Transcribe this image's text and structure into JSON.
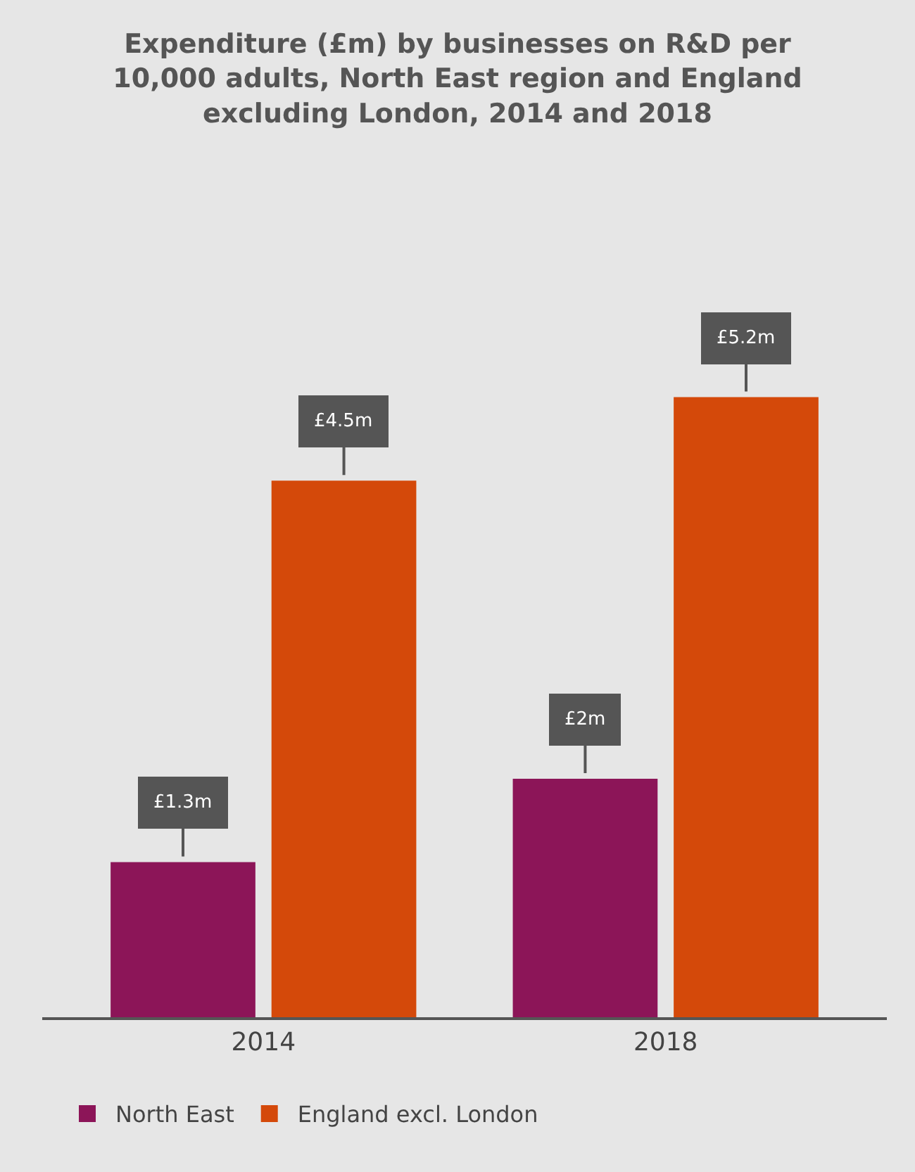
{
  "chart_data": {
    "type": "bar",
    "title": "Expenditure (£m) by businesses on R&D per 10,000 adults, North East region and England excluding London, 2014 and 2018",
    "categories": [
      "2014",
      "2018"
    ],
    "series": [
      {
        "name": "North East",
        "color": "#8c1558",
        "values": [
          1.3,
          2
        ],
        "value_labels": [
          "£1.3m",
          "£2m"
        ]
      },
      {
        "name": "England excl. London",
        "color": "#d4490a",
        "values": [
          4.5,
          5.2
        ],
        "value_labels": [
          "£4.5m",
          "£5.2m"
        ]
      }
    ],
    "legend": "bottom"
  }
}
